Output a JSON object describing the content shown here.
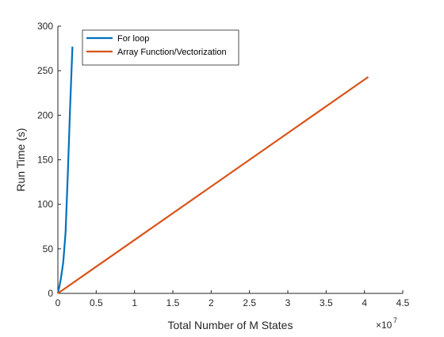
{
  "chart_data": {
    "type": "line",
    "xlabel": "Total Number of M States",
    "ylabel": "Run Time (s)",
    "x_exponent_label": "×10",
    "x_exponent_power": "7",
    "xlim": [
      0,
      45000000
    ],
    "ylim": [
      0,
      300
    ],
    "x_ticks": [
      0,
      5000000,
      10000000,
      15000000,
      20000000,
      25000000,
      30000000,
      35000000,
      40000000,
      45000000
    ],
    "x_tick_labels": [
      "0",
      "0.5",
      "1",
      "1.5",
      "2",
      "2.5",
      "3",
      "3.5",
      "4",
      "4.5"
    ],
    "y_ticks": [
      0,
      50,
      100,
      150,
      200,
      250,
      300
    ],
    "y_tick_labels": [
      "0",
      "50",
      "100",
      "150",
      "200",
      "250",
      "300"
    ],
    "grid": false,
    "legend_position": "top-left",
    "series": [
      {
        "name": "For loop",
        "color": "#0072BD",
        "x": [
          0,
          200000,
          400000,
          700000,
          1000000,
          1300000,
          1600000,
          1900000
        ],
        "y": [
          0,
          8,
          17,
          35,
          68,
          135,
          210,
          277
        ]
      },
      {
        "name": "Array Function/Vectorization",
        "color": "#D95319",
        "x": [
          0,
          40500000
        ],
        "y": [
          0,
          243
        ]
      }
    ]
  }
}
